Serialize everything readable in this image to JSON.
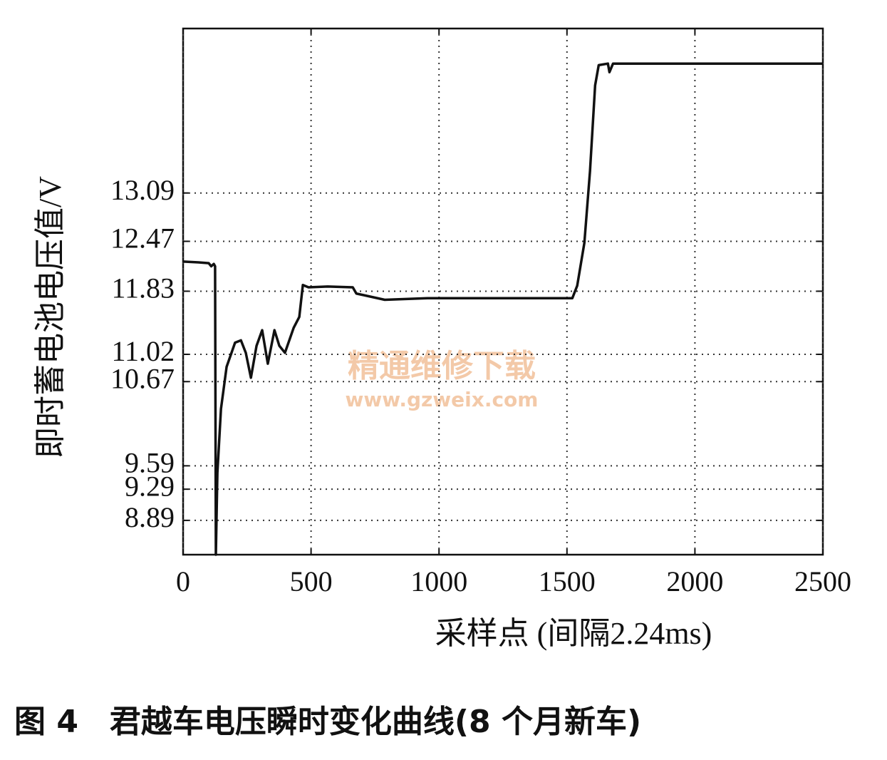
{
  "chart_data": {
    "type": "line",
    "y_label": "即时蓄电池电压值/V",
    "x_label": "采样点 (间隔2.24ms)",
    "caption": "图 4　君越车电压瞬时变化曲线(8 个月新车)",
    "watermark": "精通维修下载",
    "watermark_url": "www.gzweix.com",
    "x": [
      0,
      60,
      100,
      110,
      120,
      125,
      128,
      134,
      148,
      170,
      203,
      226,
      245,
      265,
      287,
      309,
      331,
      357,
      376,
      398,
      432,
      454,
      468,
      490,
      565,
      663,
      677,
      788,
      955,
      1234,
      1521,
      1540,
      1568,
      1590,
      1610,
      1624,
      1660,
      1666,
      1680,
      2500
    ],
    "series": [
      {
        "name": "voltage",
        "color": "#111111",
        "values": [
          12.21,
          12.2,
          12.19,
          12.15,
          12.18,
          12.15,
          8.45,
          9.5,
          10.32,
          10.86,
          11.17,
          11.2,
          11.04,
          10.72,
          11.13,
          11.33,
          10.9,
          11.33,
          11.13,
          11.04,
          11.36,
          11.5,
          11.91,
          11.88,
          11.89,
          11.88,
          11.8,
          11.72,
          11.74,
          11.74,
          11.74,
          11.9,
          12.45,
          13.37,
          14.47,
          14.73,
          14.75,
          14.64,
          14.75,
          14.75
        ]
      }
    ],
    "xlim": [
      0,
      2500
    ],
    "xticks": [
      0,
      500,
      1000,
      1500,
      2000,
      2500
    ],
    "ylim": [
      8.45,
      15.2
    ],
    "yticks": [
      8.89,
      9.29,
      9.59,
      10.67,
      11.02,
      11.83,
      12.47,
      13.09
    ],
    "grid": true
  }
}
